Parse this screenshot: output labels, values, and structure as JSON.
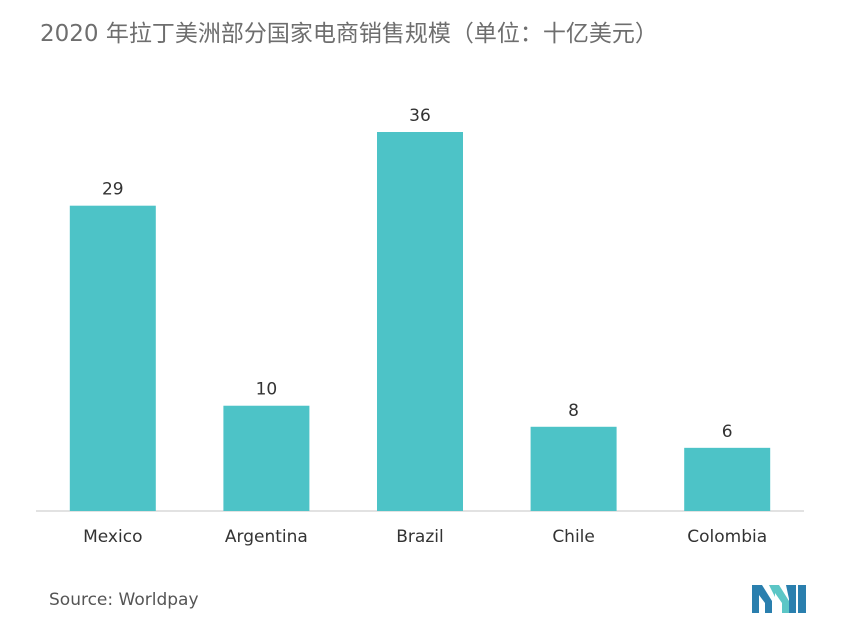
{
  "chart_data": {
    "type": "bar",
    "title": "2020 年拉丁美洲部分国家电商销售规模（单位：十亿美元）",
    "categories": [
      "Mexico",
      "Argentina",
      "Brazil",
      "Chile",
      "Colombia"
    ],
    "values": [
      29,
      10,
      36,
      8,
      6
    ],
    "data_labels": [
      "29",
      "10",
      "36",
      "8",
      "6"
    ],
    "xlabel": "",
    "ylabel": "",
    "ylim": [
      0,
      36
    ],
    "grid": false,
    "legend": "none"
  },
  "source": "Source: Worldpay",
  "colors": {
    "bar": "#4dc3c7",
    "title": "#6e6e6e",
    "axis": "#d9d9d9",
    "text": "#333333",
    "logo_primary": "#2a7fae",
    "logo_accent": "#5cc6c6"
  },
  "logo": {
    "icon": "market-intelligence-logo-icon"
  }
}
